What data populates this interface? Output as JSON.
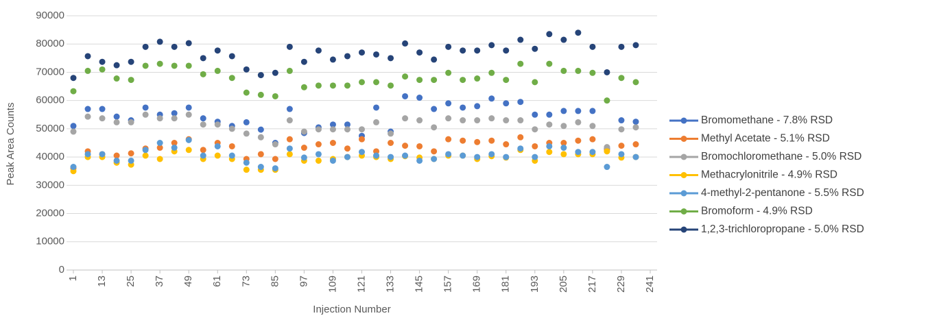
{
  "chart_data": {
    "type": "scatter",
    "x_label": "Injection Number",
    "y_label": "Peak Area Counts",
    "x": [
      1,
      7,
      13,
      19,
      25,
      31,
      37,
      43,
      49,
      55,
      61,
      67,
      73,
      79,
      85,
      91,
      97,
      103,
      109,
      115,
      121,
      127,
      133,
      139,
      145,
      151,
      157,
      163,
      169,
      175,
      181,
      187,
      193,
      199,
      205,
      211,
      217,
      223,
      229,
      235
    ],
    "xlim": [
      1,
      241
    ],
    "xticks": [
      1,
      13,
      25,
      37,
      49,
      61,
      73,
      85,
      97,
      109,
      121,
      133,
      145,
      157,
      169,
      181,
      193,
      205,
      217,
      229,
      241
    ],
    "ylim": [
      0,
      90000
    ],
    "yticks": [
      0,
      10000,
      20000,
      30000,
      40000,
      50000,
      60000,
      70000,
      80000,
      90000
    ],
    "grid": true,
    "legend": "right",
    "series": [
      {
        "name": "Bromomethane - 7.8% RSD",
        "color": "#4472c4",
        "values": [
          51000,
          57000,
          57000,
          54300,
          53000,
          57500,
          55000,
          55500,
          57500,
          53700,
          52500,
          51000,
          52300,
          49700,
          45000,
          57000,
          48500,
          50500,
          51500,
          51500,
          47500,
          57500,
          49000,
          61500,
          61000,
          57000,
          59000,
          57500,
          58000,
          60700,
          59000,
          59500,
          55000,
          55000,
          56300,
          56300,
          56300,
          43000,
          53000,
          52500
        ]
      },
      {
        "name": "Methyl Acetate - 5.1% RSD",
        "color": "#ed7d31",
        "values": [
          36000,
          42000,
          41000,
          40500,
          41300,
          43000,
          43300,
          45000,
          46300,
          42500,
          45000,
          43800,
          39300,
          41000,
          39300,
          46300,
          43300,
          44500,
          45000,
          43000,
          46300,
          42000,
          45000,
          44000,
          43800,
          42000,
          46300,
          45800,
          45300,
          45800,
          44500,
          47000,
          43800,
          45000,
          45000,
          45800,
          46300,
          42500,
          44000,
          44500
        ]
      },
      {
        "name": "Bromochloromethane - 5.0% RSD",
        "color": "#a5a5a5",
        "values": [
          49000,
          54300,
          53700,
          52300,
          52300,
          55000,
          53700,
          53700,
          55000,
          51500,
          51500,
          50000,
          48300,
          47000,
          44500,
          53000,
          49000,
          49800,
          49800,
          49800,
          49800,
          52300,
          48300,
          53700,
          53000,
          50500,
          53700,
          53000,
          53000,
          53700,
          53000,
          53000,
          49800,
          51500,
          51000,
          52300,
          51000,
          43500,
          49800,
          50500
        ]
      },
      {
        "name": "Methacrylonitrile - 4.9% RSD",
        "color": "#ffc000",
        "values": [
          35000,
          40000,
          40000,
          38000,
          37300,
          40500,
          39300,
          42000,
          42500,
          39300,
          40500,
          39300,
          35500,
          35500,
          35500,
          41000,
          38700,
          38700,
          39300,
          40000,
          40500,
          40000,
          39300,
          40300,
          39800,
          39300,
          40500,
          40500,
          39300,
          40300,
          39800,
          42500,
          38700,
          41800,
          41000,
          41000,
          41000,
          42000,
          39800,
          40000
        ]
      },
      {
        "name": "4-methyl-2-pentanone - 5.5% RSD",
        "color": "#5b9bd5",
        "values": [
          36500,
          41000,
          41000,
          38700,
          38700,
          42500,
          45000,
          43300,
          46000,
          40500,
          43800,
          40500,
          38000,
          36500,
          36000,
          43000,
          39800,
          41000,
          38700,
          40000,
          41800,
          40500,
          40000,
          40500,
          38700,
          39300,
          41000,
          40500,
          40000,
          41000,
          40000,
          43000,
          40000,
          43800,
          43300,
          41800,
          41800,
          36500,
          41000,
          40000
        ]
      },
      {
        "name": "Bromoform - 4.9% RSD",
        "color": "#70ad47",
        "values": [
          63300,
          70500,
          71000,
          67800,
          67300,
          72300,
          73000,
          72300,
          72300,
          69300,
          70500,
          68000,
          62800,
          62000,
          61500,
          70500,
          64700,
          65300,
          65300,
          65300,
          66500,
          66500,
          65300,
          68500,
          67300,
          67300,
          69800,
          67300,
          67800,
          69800,
          67300,
          73000,
          66500,
          73000,
          70500,
          70500,
          69800,
          60000,
          68000,
          66500
        ]
      },
      {
        "name": "1,2,3-trichloropropane - 5.0% RSD",
        "color": "#264478",
        "values": [
          68000,
          75700,
          73700,
          72500,
          73700,
          79000,
          80800,
          79000,
          80300,
          75000,
          77700,
          75700,
          71000,
          69000,
          69800,
          79000,
          73700,
          77700,
          74500,
          75700,
          77000,
          76300,
          75000,
          80200,
          77000,
          74500,
          79000,
          77700,
          77700,
          79600,
          77700,
          81500,
          78300,
          83500,
          81500,
          84000,
          79000,
          70000,
          79000,
          79600
        ]
      }
    ]
  }
}
